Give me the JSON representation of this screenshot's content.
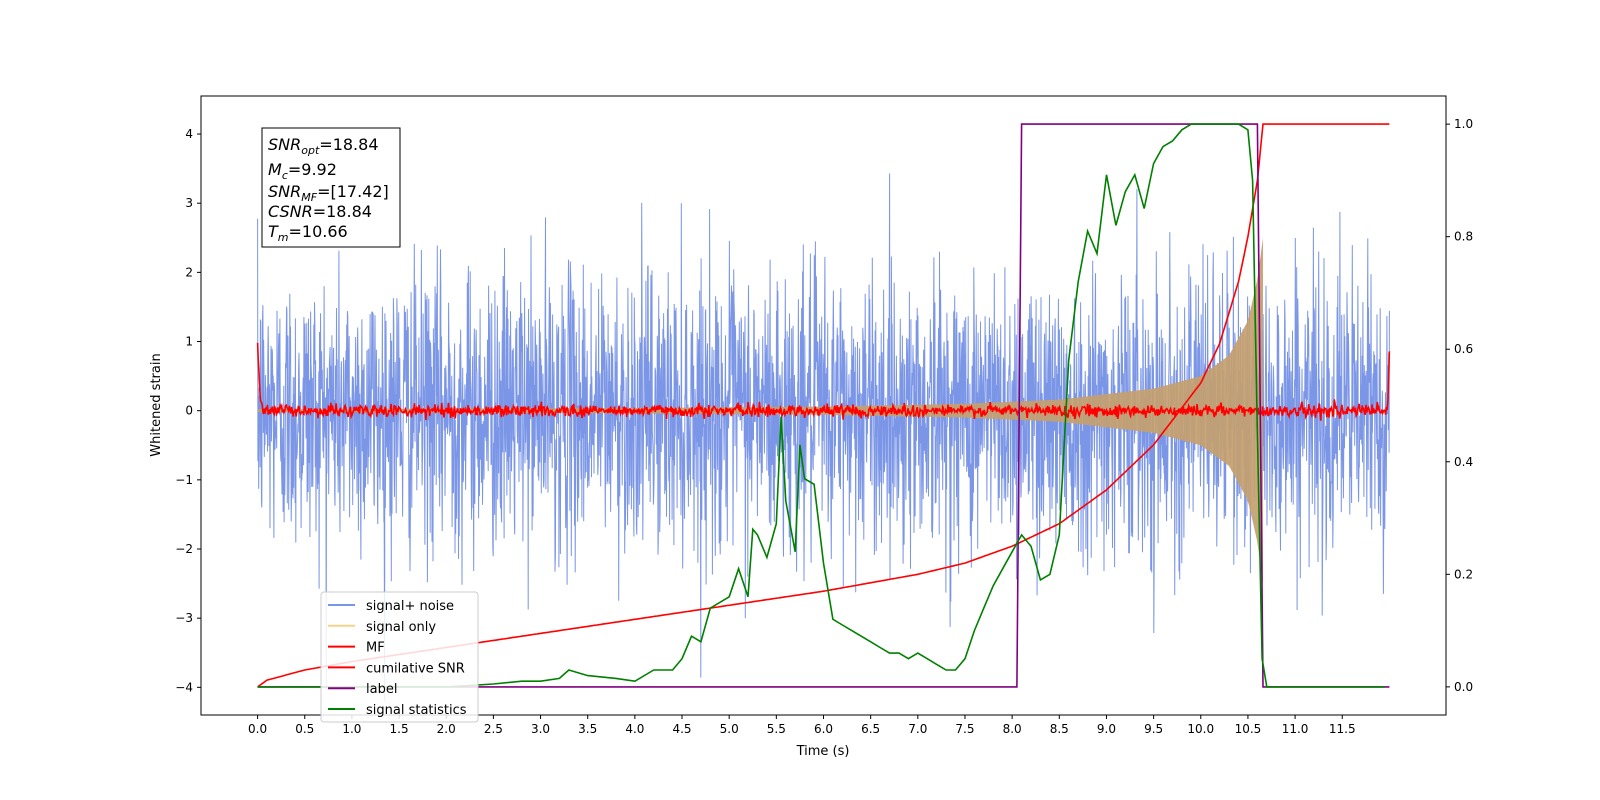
{
  "chart_data": {
    "type": "line",
    "xlabel": "Time (s)",
    "ylabel": "Whitened strain",
    "xlim": [
      -0.6,
      12.6
    ],
    "ylim_left": [
      -4.4,
      4.55
    ],
    "ylim_right": [
      -0.05,
      1.05
    ],
    "x_ticks": [
      "0.0",
      "0.5",
      "1.0",
      "1.5",
      "2.0",
      "2.5",
      "3.0",
      "3.5",
      "4.0",
      "4.5",
      "5.0",
      "5.5",
      "6.0",
      "6.5",
      "7.0",
      "7.5",
      "8.0",
      "8.5",
      "9.0",
      "9.5",
      "10.0",
      "10.5",
      "11.0",
      "11.5"
    ],
    "y_ticks_left": [
      "4",
      "3",
      "2",
      "1",
      "0",
      "−1",
      "−2",
      "−3",
      "−4"
    ],
    "y_ticks_right": [
      "1.0",
      "0.8",
      "0.6",
      "0.4",
      "0.2",
      "0.0"
    ],
    "info_box": {
      "snr_opt_label": "SNR",
      "snr_opt_sub": "opt",
      "snr_opt_value": "=18.84",
      "mc_label": "M",
      "mc_sub": "c",
      "mc_value": "=9.92",
      "snr_mf_label": "SNR",
      "snr_mf_sub": "MF",
      "snr_mf_value": "=[17.42]",
      "csnr_label": "CSNR",
      "csnr_value": "=18.84",
      "tm_label": "T",
      "tm_sub": "m",
      "tm_value": "=10.66"
    },
    "legend": {
      "location": "lower-left",
      "entries": [
        {
          "label": "signal+ noise",
          "color": "#7b96e6"
        },
        {
          "label": "signal only",
          "color": "#f8d38c"
        },
        {
          "label": "MF",
          "color": "#ff0000"
        },
        {
          "label": "cumilative SNR",
          "color": "#ff0000"
        },
        {
          "label": "label",
          "color": "#800080"
        },
        {
          "label": "signal statistics",
          "color": "#008000"
        }
      ]
    },
    "series": [
      {
        "name": "signal+ noise",
        "axis": "left",
        "description_values": {
          "t_start": 0.0,
          "t_end": 12.0,
          "noise_sigma": 1.0,
          "merger_time": 10.66
        }
      },
      {
        "name": "signal only",
        "axis": "left",
        "envelope_x": [
          0,
          4,
          6,
          7.5,
          8.5,
          9.5,
          10.0,
          10.3,
          10.5,
          10.6,
          10.65,
          10.66
        ],
        "envelope_y": [
          0.02,
          0.04,
          0.06,
          0.1,
          0.16,
          0.32,
          0.5,
          0.8,
          1.3,
          1.9,
          2.4,
          2.5
        ]
      },
      {
        "name": "MF",
        "axis": "left",
        "x": [
          0.0,
          0.03,
          0.1,
          11.98,
          12.0
        ],
        "y": [
          1.0,
          0.1,
          0.0,
          0.0,
          0.85
        ]
      },
      {
        "name": "cumilative SNR",
        "axis": "right",
        "x": [
          0.0,
          0.1,
          0.5,
          1.0,
          2.0,
          3.0,
          4.0,
          5.0,
          6.0,
          7.0,
          7.5,
          8.0,
          8.5,
          9.0,
          9.5,
          10.0,
          10.2,
          10.4,
          10.5,
          10.6,
          10.66,
          10.7,
          12.0
        ],
        "y": [
          0.0,
          0.012,
          0.03,
          0.045,
          0.07,
          0.095,
          0.12,
          0.145,
          0.17,
          0.2,
          0.22,
          0.25,
          0.29,
          0.35,
          0.43,
          0.54,
          0.61,
          0.72,
          0.8,
          0.9,
          1.0,
          1.0,
          1.0
        ]
      },
      {
        "name": "label",
        "axis": "right",
        "x": [
          0.0,
          8.05,
          8.1,
          10.6,
          10.66,
          12.0
        ],
        "y": [
          0.0,
          0.0,
          1.0,
          1.0,
          0.0,
          0.0
        ]
      },
      {
        "name": "signal statistics",
        "axis": "right",
        "x": [
          0.0,
          0.5,
          1.0,
          1.5,
          2.0,
          2.5,
          2.8,
          3.0,
          3.2,
          3.3,
          3.5,
          3.8,
          4.0,
          4.2,
          4.4,
          4.5,
          4.6,
          4.7,
          4.8,
          5.0,
          5.1,
          5.2,
          5.25,
          5.3,
          5.4,
          5.5,
          5.55,
          5.6,
          5.7,
          5.75,
          5.8,
          5.9,
          6.0,
          6.1,
          6.2,
          6.3,
          6.4,
          6.5,
          6.6,
          6.7,
          6.8,
          6.9,
          7.0,
          7.1,
          7.2,
          7.3,
          7.4,
          7.5,
          7.6,
          7.7,
          7.8,
          7.9,
          8.0,
          8.1,
          8.2,
          8.3,
          8.4,
          8.5,
          8.6,
          8.7,
          8.8,
          8.9,
          9.0,
          9.1,
          9.2,
          9.3,
          9.4,
          9.5,
          9.6,
          9.7,
          9.8,
          9.9,
          10.0,
          10.1,
          10.2,
          10.3,
          10.4,
          10.5,
          10.55,
          10.6,
          10.65,
          10.7,
          10.75,
          10.8,
          11.0,
          11.5,
          11.95
        ],
        "y": [
          0.0,
          0.0,
          0.0,
          0.0,
          0.0,
          0.005,
          0.01,
          0.01,
          0.015,
          0.03,
          0.02,
          0.015,
          0.01,
          0.03,
          0.03,
          0.05,
          0.09,
          0.08,
          0.14,
          0.16,
          0.21,
          0.16,
          0.28,
          0.27,
          0.23,
          0.29,
          0.48,
          0.33,
          0.24,
          0.43,
          0.37,
          0.36,
          0.22,
          0.12,
          0.11,
          0.1,
          0.09,
          0.08,
          0.07,
          0.06,
          0.06,
          0.05,
          0.06,
          0.05,
          0.04,
          0.03,
          0.03,
          0.05,
          0.1,
          0.14,
          0.18,
          0.21,
          0.24,
          0.27,
          0.25,
          0.19,
          0.2,
          0.27,
          0.58,
          0.72,
          0.81,
          0.77,
          0.91,
          0.82,
          0.88,
          0.91,
          0.85,
          0.93,
          0.96,
          0.97,
          0.99,
          1.0,
          1.0,
          1.0,
          1.0,
          1.0,
          1.0,
          0.99,
          0.9,
          0.45,
          0.05,
          0.0,
          0.0,
          0.0,
          0.0,
          0.0,
          0.0
        ]
      }
    ]
  }
}
